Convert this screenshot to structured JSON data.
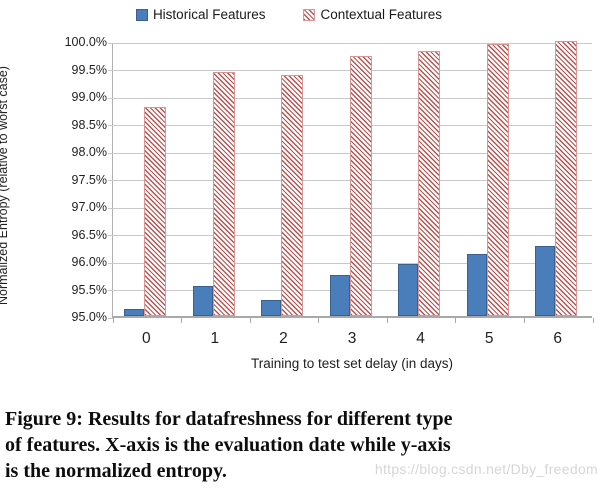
{
  "chart_data": {
    "type": "bar",
    "categories": [
      "0",
      "1",
      "2",
      "3",
      "4",
      "5",
      "6"
    ],
    "series": [
      {
        "name": "Historical Features",
        "pattern": "solid",
        "color": "#4a7ebb",
        "border_color": "#38618f",
        "values": [
          95.12,
          95.55,
          95.3,
          95.75,
          95.95,
          96.12,
          96.28
        ]
      },
      {
        "name": "Contextual Features",
        "pattern": "diagonal-hatch",
        "color": "#c0504d",
        "border_color": "#d99694",
        "values": [
          98.8,
          99.43,
          99.38,
          99.72,
          99.82,
          99.95,
          100.0
        ]
      }
    ],
    "xlabel": "Training to test set delay (in days)",
    "ylabel": "Normalized Entropy (relative to worst case)",
    "ylim": [
      95.0,
      100.0
    ],
    "ytick_step": 0.5,
    "yticks": [
      "100.0%",
      "99.5%",
      "99.0%",
      "98.5%",
      "98.0%",
      "97.5%",
      "97.0%",
      "96.5%",
      "96.0%",
      "95.5%",
      "95.0%"
    ],
    "grid": true,
    "legend_position": "top"
  },
  "caption": {
    "lines": [
      "Figure 9:  Results for datafreshness for different type",
      "of features.  X-axis is the evaluation date while y-axis",
      "is the normalized entropy."
    ]
  },
  "watermark": "https://blog.csdn.net/Dby_freedom"
}
